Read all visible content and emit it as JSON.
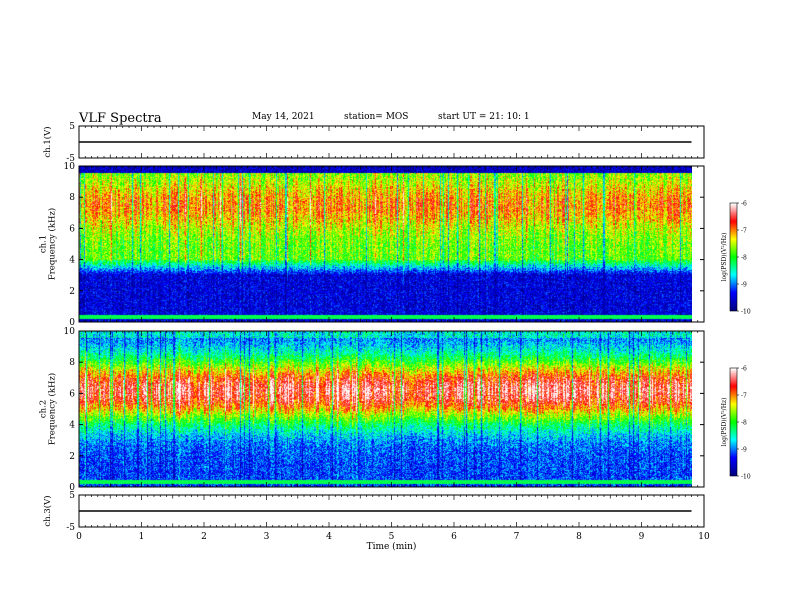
{
  "header": {
    "title": "VLF Spectra",
    "date": "May 14, 2021",
    "station": "station= MOS",
    "start": "start  UT =   21: 10: 1"
  },
  "chart_data": [
    {
      "type": "line",
      "name": "ch1-waveform",
      "ylabel": "ch.1(V)",
      "ylim": [
        -5,
        5
      ],
      "yticks": [
        "5",
        "-5"
      ],
      "xlim": [
        0,
        10
      ],
      "x": [
        0,
        9.8
      ],
      "y": [
        0,
        0
      ]
    },
    {
      "type": "heatmap",
      "name": "ch1-spectrogram",
      "ylabel": "ch.1\nFrequency (kHz)",
      "ylim": [
        0,
        10
      ],
      "yticks": [
        "0",
        "2",
        "4",
        "6",
        "8",
        "10"
      ],
      "xlim": [
        0,
        10
      ],
      "data_extent_min": 9.8,
      "colorbar": {
        "label": "log(PSD)(V²/Hz)",
        "range": [
          -10,
          -6
        ],
        "ticks": [
          "-6",
          "-7",
          "-8",
          "-9",
          "-10"
        ]
      }
    },
    {
      "type": "heatmap",
      "name": "ch2-spectrogram",
      "ylabel": "ch.2\nFrequency (kHz)",
      "ylim": [
        0,
        10
      ],
      "yticks": [
        "0",
        "2",
        "4",
        "6",
        "8",
        "10"
      ],
      "xlim": [
        0,
        10
      ],
      "data_extent_min": 9.8,
      "colorbar": {
        "label": "log(PSD)(V²/Hz)",
        "range": [
          -10,
          -6
        ],
        "ticks": [
          "-6",
          "-7",
          "-8",
          "-9",
          "-10"
        ]
      }
    },
    {
      "type": "line",
      "name": "ch3-waveform",
      "ylabel": "ch.3(V)",
      "ylim": [
        -5,
        5
      ],
      "yticks": [
        "5",
        "-5"
      ],
      "xlim": [
        0,
        10
      ],
      "xlabel": "Time (min)",
      "xticks": [
        "0",
        "1",
        "2",
        "3",
        "4",
        "5",
        "6",
        "7",
        "8",
        "9",
        "10"
      ],
      "x": [
        0,
        9.8
      ],
      "y": [
        0,
        0
      ]
    }
  ],
  "colors": {
    "colormap": [
      "#000080",
      "#0000ff",
      "#00ffff",
      "#00ff00",
      "#ffff00",
      "#ff0000",
      "#ffffff"
    ]
  }
}
